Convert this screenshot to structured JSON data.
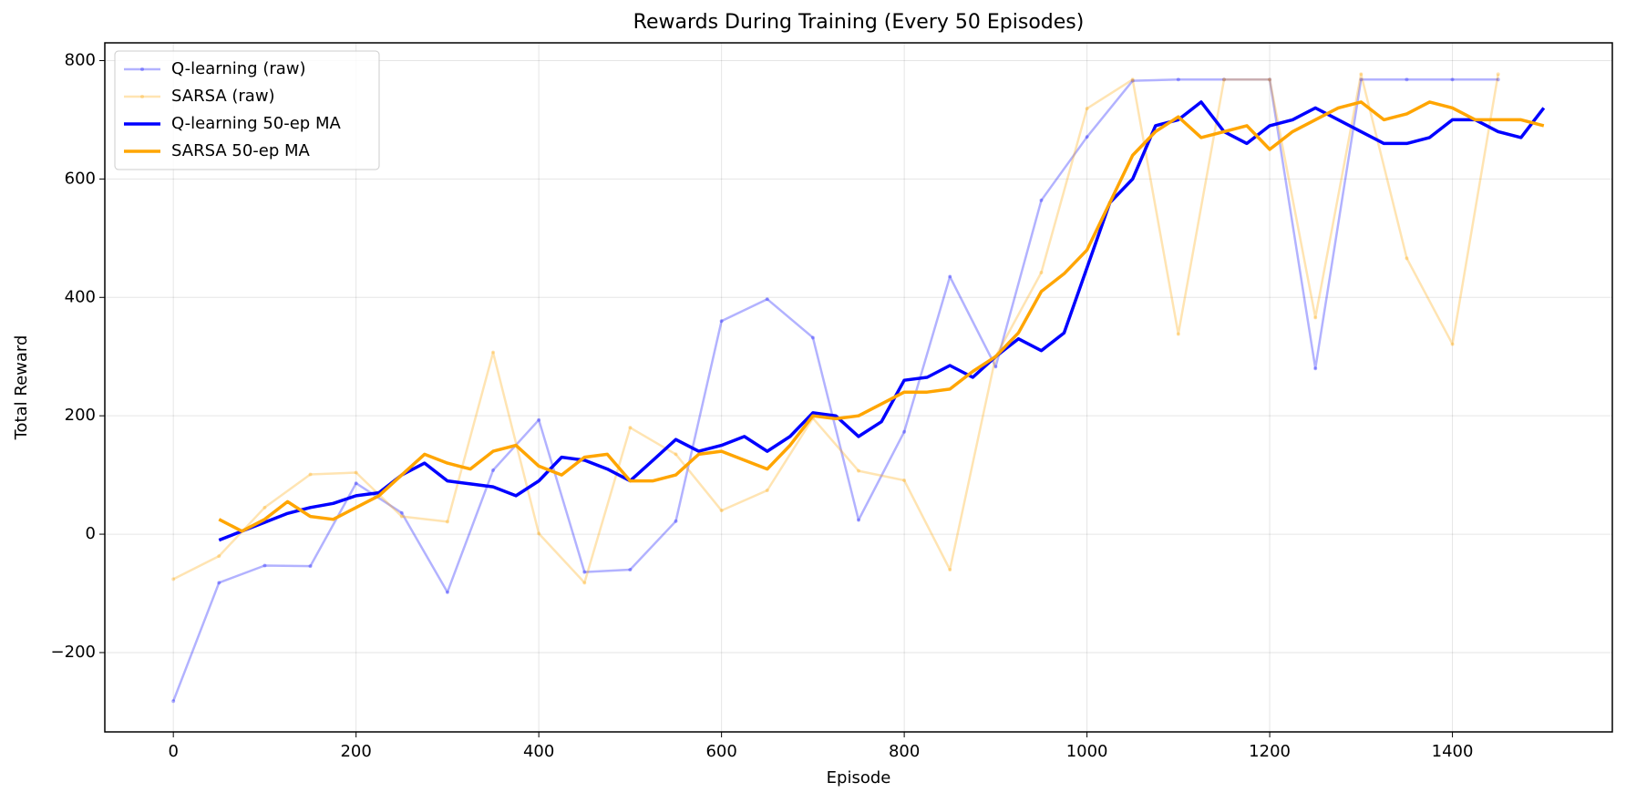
{
  "chart_data": {
    "type": "line",
    "title": "Rewards During Training (Every 50 Episodes)",
    "x_label": "Episode",
    "y_label": "Total Reward",
    "xlim": [
      -75,
      1575
    ],
    "ylim": [
      -334,
      830
    ],
    "xticks": [
      0,
      200,
      400,
      600,
      800,
      1000,
      1200,
      1400
    ],
    "yticks": [
      {
        "value": -200,
        "label": "−200"
      },
      0,
      200,
      400,
      600,
      800
    ],
    "grid": true,
    "legend": "upper left",
    "series": [
      {
        "name": "Q-learning (raw)",
        "color": "#0000ff",
        "opacity": 0.3,
        "width": 2.5,
        "markers": true,
        "x": [
          0,
          50,
          100,
          150,
          200,
          250,
          300,
          350,
          400,
          450,
          500,
          550,
          600,
          650,
          700,
          750,
          800,
          850,
          900,
          950,
          1000,
          1050,
          1100,
          1150,
          1200,
          1250,
          1300,
          1350,
          1400,
          1450
        ],
        "values": [
          -282,
          -82,
          -53,
          -54,
          86,
          36,
          -98,
          108,
          193,
          -64,
          -60,
          22,
          360,
          397,
          332,
          24,
          173,
          435,
          283,
          564,
          671,
          766,
          768,
          768,
          768,
          280,
          768,
          768,
          768,
          768
        ]
      },
      {
        "name": "SARSA (raw)",
        "color": "#ffa500",
        "opacity": 0.3,
        "width": 2.5,
        "markers": true,
        "x": [
          0,
          50,
          100,
          150,
          200,
          250,
          300,
          350,
          400,
          450,
          500,
          550,
          600,
          650,
          700,
          750,
          800,
          850,
          900,
          950,
          1000,
          1050,
          1100,
          1150,
          1200,
          1250,
          1300,
          1350,
          1400,
          1450
        ],
        "values": [
          -76,
          -37,
          45,
          101,
          104,
          30,
          21,
          307,
          1,
          -82,
          180,
          135,
          40,
          74,
          196,
          107,
          91,
          -60,
          300,
          442,
          719,
          768,
          338,
          768,
          768,
          366,
          777,
          466,
          321,
          777
        ]
      },
      {
        "name": "Q-learning 50-ep MA",
        "color": "#0000ff",
        "opacity": 1,
        "width": 3.5,
        "markers": false,
        "x": [
          50,
          75,
          100,
          125,
          150,
          175,
          200,
          225,
          250,
          275,
          300,
          325,
          350,
          375,
          400,
          425,
          450,
          475,
          500,
          525,
          550,
          575,
          600,
          625,
          650,
          675,
          700,
          725,
          750,
          775,
          800,
          825,
          850,
          875,
          900,
          925,
          950,
          975,
          1000,
          1025,
          1050,
          1075,
          1100,
          1125,
          1150,
          1175,
          1200,
          1225,
          1250,
          1275,
          1300,
          1325,
          1350,
          1375,
          1400,
          1425,
          1450,
          1475,
          1500
        ],
        "values": [
          -10,
          5,
          20,
          35,
          45,
          52,
          65,
          70,
          100,
          120,
          90,
          85,
          80,
          65,
          90,
          130,
          125,
          110,
          90,
          125,
          160,
          140,
          150,
          165,
          140,
          165,
          205,
          200,
          165,
          190,
          260,
          265,
          285,
          265,
          300,
          330,
          310,
          340,
          450,
          560,
          600,
          690,
          700,
          730,
          680,
          660,
          690,
          700,
          720,
          700,
          680,
          660,
          660,
          670,
          700,
          700,
          680,
          670,
          720
        ]
      },
      {
        "name": "SARSA 50-ep MA",
        "color": "#ffa500",
        "opacity": 1,
        "width": 3.5,
        "markers": false,
        "x": [
          50,
          75,
          100,
          125,
          150,
          175,
          200,
          225,
          250,
          275,
          300,
          325,
          350,
          375,
          400,
          425,
          450,
          475,
          500,
          525,
          550,
          575,
          600,
          625,
          650,
          675,
          700,
          725,
          750,
          775,
          800,
          825,
          850,
          875,
          900,
          925,
          950,
          975,
          1000,
          1025,
          1050,
          1075,
          1100,
          1125,
          1150,
          1175,
          1200,
          1225,
          1250,
          1275,
          1300,
          1325,
          1350,
          1375,
          1400,
          1425,
          1450,
          1475,
          1500
        ],
        "values": [
          25,
          5,
          25,
          55,
          30,
          25,
          45,
          65,
          100,
          135,
          120,
          110,
          140,
          150,
          115,
          100,
          130,
          135,
          90,
          90,
          100,
          135,
          140,
          125,
          110,
          150,
          200,
          195,
          200,
          220,
          240,
          240,
          245,
          275,
          300,
          340,
          410,
          440,
          480,
          560,
          640,
          680,
          705,
          670,
          680,
          690,
          650,
          680,
          700,
          720,
          730,
          700,
          710,
          730,
          720,
          700,
          700,
          700,
          690
        ]
      }
    ]
  }
}
